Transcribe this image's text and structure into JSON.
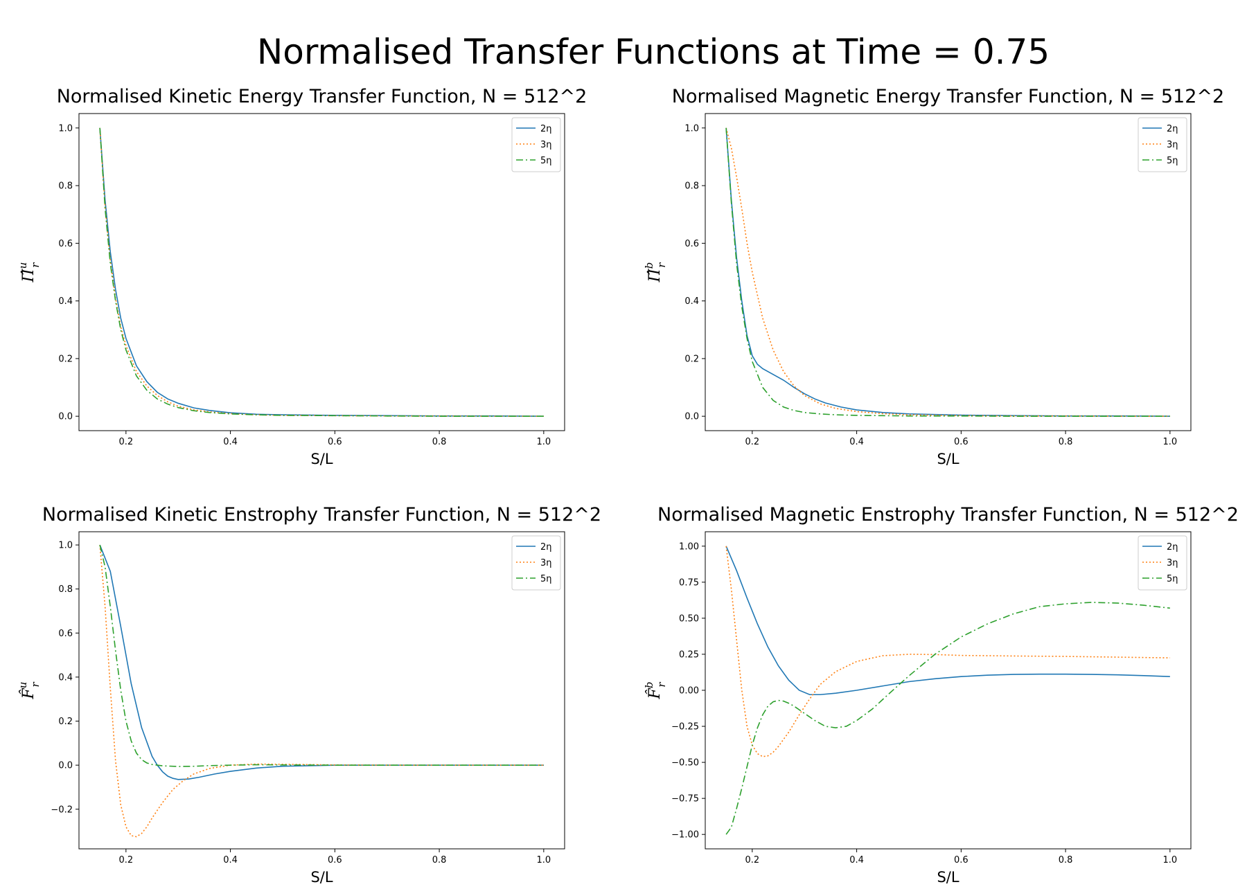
{
  "figure": {
    "title": "Normalised Transfer Functions at Time = 0.75"
  },
  "colors": {
    "2eta": "#1f77b4",
    "3eta": "#ff7f0e",
    "5eta": "#2ca02c"
  },
  "chart_data": [
    {
      "type": "line",
      "title": "Normalised Kinetic Energy Transfer Function, N = 512^2",
      "xlabel": "S/L",
      "ylabel": {
        "base": "Π̂",
        "sup": "u",
        "sub": "r"
      },
      "xlim": [
        0.11,
        1.04
      ],
      "ylim": [
        -0.05,
        1.05
      ],
      "xticks": [
        "0.2",
        "0.4",
        "0.6",
        "0.8",
        "1.0"
      ],
      "yticks": [
        "0.0",
        "0.2",
        "0.4",
        "0.6",
        "0.8",
        "1.0"
      ],
      "legend": "top-right",
      "series": [
        {
          "name": "2η",
          "style": "solid",
          "x": [
            0.15,
            0.16,
            0.17,
            0.18,
            0.19,
            0.2,
            0.22,
            0.24,
            0.26,
            0.28,
            0.3,
            0.33,
            0.36,
            0.4,
            0.45,
            0.5,
            0.6,
            0.7,
            0.8,
            0.9,
            1.0
          ],
          "y": [
            1.0,
            0.75,
            0.57,
            0.44,
            0.34,
            0.27,
            0.175,
            0.12,
            0.083,
            0.06,
            0.045,
            0.029,
            0.02,
            0.012,
            0.007,
            0.005,
            0.003,
            0.002,
            0.001,
            0.001,
            0.0
          ]
        },
        {
          "name": "3η",
          "style": "dotted",
          "x": [
            0.15,
            0.16,
            0.17,
            0.18,
            0.19,
            0.2,
            0.22,
            0.24,
            0.26,
            0.28,
            0.3,
            0.33,
            0.36,
            0.4,
            0.45,
            0.5,
            0.6,
            0.7,
            0.8,
            0.9,
            1.0
          ],
          "y": [
            1.0,
            0.73,
            0.54,
            0.41,
            0.31,
            0.245,
            0.155,
            0.105,
            0.072,
            0.05,
            0.035,
            0.022,
            0.015,
            0.009,
            0.005,
            0.003,
            0.002,
            0.001,
            0.001,
            0.0,
            0.0
          ]
        },
        {
          "name": "5η",
          "style": "dashdot",
          "x": [
            0.15,
            0.16,
            0.17,
            0.18,
            0.19,
            0.2,
            0.22,
            0.24,
            0.26,
            0.28,
            0.3,
            0.33,
            0.36,
            0.4,
            0.45,
            0.5,
            0.6,
            0.7,
            0.8,
            0.9,
            1.0
          ],
          "y": [
            1.0,
            0.72,
            0.53,
            0.4,
            0.3,
            0.23,
            0.14,
            0.09,
            0.06,
            0.042,
            0.03,
            0.019,
            0.013,
            0.008,
            0.005,
            0.003,
            0.002,
            0.001,
            0.0,
            0.0,
            0.0
          ]
        }
      ]
    },
    {
      "type": "line",
      "title": "Normalised Magnetic Energy Transfer Function, N = 512^2",
      "xlabel": "S/L",
      "ylabel": {
        "base": "Π̂",
        "sup": "b",
        "sub": "r"
      },
      "xlim": [
        0.11,
        1.04
      ],
      "ylim": [
        -0.05,
        1.05
      ],
      "xticks": [
        "0.2",
        "0.4",
        "0.6",
        "0.8",
        "1.0"
      ],
      "yticks": [
        "0.0",
        "0.2",
        "0.4",
        "0.6",
        "0.8",
        "1.0"
      ],
      "legend": "top-right",
      "series": [
        {
          "name": "2η",
          "style": "solid",
          "x": [
            0.15,
            0.16,
            0.17,
            0.18,
            0.19,
            0.2,
            0.21,
            0.22,
            0.24,
            0.26,
            0.28,
            0.3,
            0.32,
            0.34,
            0.37,
            0.4,
            0.45,
            0.5,
            0.6,
            0.7,
            0.8,
            0.9,
            1.0
          ],
          "y": [
            1.0,
            0.75,
            0.55,
            0.4,
            0.28,
            0.21,
            0.18,
            0.165,
            0.145,
            0.125,
            0.1,
            0.078,
            0.06,
            0.046,
            0.032,
            0.022,
            0.013,
            0.008,
            0.004,
            0.002,
            0.001,
            0.001,
            0.0
          ]
        },
        {
          "name": "3η",
          "style": "dotted",
          "x": [
            0.15,
            0.16,
            0.17,
            0.18,
            0.19,
            0.2,
            0.22,
            0.24,
            0.26,
            0.28,
            0.3,
            0.33,
            0.36,
            0.4,
            0.45,
            0.5,
            0.6,
            0.7,
            0.8,
            0.9,
            1.0
          ],
          "y": [
            1.0,
            0.93,
            0.83,
            0.72,
            0.6,
            0.5,
            0.34,
            0.23,
            0.155,
            0.105,
            0.072,
            0.043,
            0.027,
            0.016,
            0.009,
            0.005,
            0.002,
            0.001,
            0.001,
            0.0,
            0.0
          ]
        },
        {
          "name": "5η",
          "style": "dashdot",
          "x": [
            0.15,
            0.16,
            0.17,
            0.18,
            0.19,
            0.2,
            0.22,
            0.24,
            0.26,
            0.28,
            0.3,
            0.33,
            0.36,
            0.4,
            0.45,
            0.5,
            0.6,
            0.7,
            0.8,
            0.9,
            1.0
          ],
          "y": [
            1.0,
            0.74,
            0.53,
            0.38,
            0.27,
            0.19,
            0.1,
            0.055,
            0.032,
            0.02,
            0.013,
            0.008,
            0.005,
            0.003,
            0.002,
            0.001,
            0.001,
            0.0,
            0.0,
            0.0,
            0.0
          ]
        }
      ]
    },
    {
      "type": "line",
      "title": "Normalised Kinetic Enstrophy Transfer Function, N = 512^2",
      "xlabel": "S/L",
      "ylabel": {
        "base": "F̂",
        "sup": "u",
        "sub": "r"
      },
      "xlim": [
        0.11,
        1.04
      ],
      "ylim": [
        -0.38,
        1.06
      ],
      "xticks": [
        "0.2",
        "0.4",
        "0.6",
        "0.8",
        "1.0"
      ],
      "yticks": [
        "−0.2",
        "0.0",
        "0.2",
        "0.4",
        "0.6",
        "0.8",
        "1.0"
      ],
      "ytick_values": [
        -0.2,
        0.0,
        0.2,
        0.4,
        0.6,
        0.8,
        1.0
      ],
      "legend": "top-right",
      "series": [
        {
          "name": "2η",
          "style": "solid",
          "x": [
            0.15,
            0.17,
            0.19,
            0.21,
            0.23,
            0.25,
            0.26,
            0.27,
            0.28,
            0.29,
            0.3,
            0.32,
            0.34,
            0.37,
            0.4,
            0.45,
            0.5,
            0.6,
            0.7,
            0.8,
            0.9,
            1.0
          ],
          "y": [
            1.0,
            0.88,
            0.63,
            0.37,
            0.17,
            0.04,
            0.0,
            -0.03,
            -0.05,
            -0.06,
            -0.065,
            -0.063,
            -0.055,
            -0.04,
            -0.028,
            -0.013,
            -0.005,
            0.0,
            0.0,
            0.0,
            0.0,
            0.0
          ]
        },
        {
          "name": "3η",
          "style": "dotted",
          "x": [
            0.15,
            0.16,
            0.17,
            0.18,
            0.19,
            0.2,
            0.21,
            0.22,
            0.23,
            0.24,
            0.25,
            0.27,
            0.29,
            0.31,
            0.33,
            0.36,
            0.4,
            0.45,
            0.5,
            0.6,
            0.7,
            0.8,
            0.9,
            1.0
          ],
          "y": [
            1.0,
            0.72,
            0.35,
            0.02,
            -0.18,
            -0.28,
            -0.32,
            -0.325,
            -0.31,
            -0.28,
            -0.24,
            -0.17,
            -0.11,
            -0.07,
            -0.04,
            -0.015,
            0.0,
            0.005,
            0.004,
            0.001,
            0.0,
            0.0,
            0.0,
            0.0
          ]
        },
        {
          "name": "5η",
          "style": "dashdot",
          "x": [
            0.15,
            0.16,
            0.17,
            0.18,
            0.19,
            0.2,
            0.21,
            0.22,
            0.23,
            0.24,
            0.25,
            0.27,
            0.3,
            0.33,
            0.36,
            0.4,
            0.45,
            0.5,
            0.6,
            0.7,
            0.8,
            0.9,
            1.0
          ],
          "y": [
            1.0,
            0.9,
            0.72,
            0.52,
            0.34,
            0.2,
            0.11,
            0.055,
            0.025,
            0.01,
            0.003,
            -0.003,
            -0.006,
            -0.005,
            -0.002,
            0.0,
            0.002,
            0.001,
            0.0,
            0.0,
            0.0,
            0.0,
            0.0
          ]
        }
      ]
    },
    {
      "type": "line",
      "title": "Normalised Magnetic Enstrophy Transfer Function, N = 512^2",
      "xlabel": "S/L",
      "ylabel": {
        "base": "F̂",
        "sup": "b",
        "sub": "r"
      },
      "xlim": [
        0.11,
        1.04
      ],
      "ylim": [
        -1.1,
        1.1
      ],
      "xticks": [
        "0.2",
        "0.4",
        "0.6",
        "0.8",
        "1.0"
      ],
      "yticks": [
        "−1.00",
        "−0.75",
        "−0.50",
        "−0.25",
        "0.00",
        "0.25",
        "0.50",
        "0.75",
        "1.00"
      ],
      "ytick_values": [
        -1.0,
        -0.75,
        -0.5,
        -0.25,
        0.0,
        0.25,
        0.5,
        0.75,
        1.0
      ],
      "legend": "top-right",
      "series": [
        {
          "name": "2η",
          "style": "solid",
          "x": [
            0.15,
            0.17,
            0.19,
            0.21,
            0.23,
            0.25,
            0.27,
            0.29,
            0.31,
            0.33,
            0.36,
            0.4,
            0.45,
            0.5,
            0.55,
            0.6,
            0.65,
            0.7,
            0.75,
            0.8,
            0.85,
            0.9,
            0.95,
            1.0
          ],
          "y": [
            1.0,
            0.83,
            0.64,
            0.46,
            0.3,
            0.17,
            0.07,
            0.0,
            -0.03,
            -0.03,
            -0.02,
            0.0,
            0.03,
            0.06,
            0.08,
            0.095,
            0.105,
            0.11,
            0.112,
            0.112,
            0.11,
            0.107,
            0.102,
            0.095
          ]
        },
        {
          "name": "3η",
          "style": "dotted",
          "x": [
            0.15,
            0.16,
            0.17,
            0.18,
            0.19,
            0.2,
            0.21,
            0.22,
            0.23,
            0.24,
            0.25,
            0.27,
            0.29,
            0.31,
            0.33,
            0.36,
            0.4,
            0.45,
            0.5,
            0.55,
            0.6,
            0.7,
            0.8,
            0.9,
            1.0
          ],
          "y": [
            1.0,
            0.7,
            0.35,
            0.0,
            -0.25,
            -0.38,
            -0.44,
            -0.46,
            -0.455,
            -0.43,
            -0.39,
            -0.29,
            -0.17,
            -0.06,
            0.04,
            0.13,
            0.2,
            0.24,
            0.25,
            0.248,
            0.242,
            0.238,
            0.235,
            0.23,
            0.225
          ]
        },
        {
          "name": "5η",
          "style": "dashdot",
          "x": [
            0.15,
            0.16,
            0.17,
            0.18,
            0.19,
            0.2,
            0.21,
            0.22,
            0.23,
            0.24,
            0.25,
            0.26,
            0.27,
            0.28,
            0.3,
            0.32,
            0.34,
            0.36,
            0.38,
            0.4,
            0.43,
            0.46,
            0.5,
            0.55,
            0.6,
            0.65,
            0.7,
            0.75,
            0.8,
            0.85,
            0.9,
            0.95,
            1.0
          ],
          "y": [
            -1.0,
            -0.95,
            -0.82,
            -0.68,
            -0.53,
            -0.38,
            -0.26,
            -0.17,
            -0.11,
            -0.08,
            -0.07,
            -0.075,
            -0.09,
            -0.11,
            -0.16,
            -0.21,
            -0.25,
            -0.26,
            -0.25,
            -0.21,
            -0.13,
            -0.03,
            0.1,
            0.25,
            0.37,
            0.46,
            0.53,
            0.58,
            0.6,
            0.61,
            0.605,
            0.59,
            0.57
          ]
        }
      ]
    }
  ]
}
